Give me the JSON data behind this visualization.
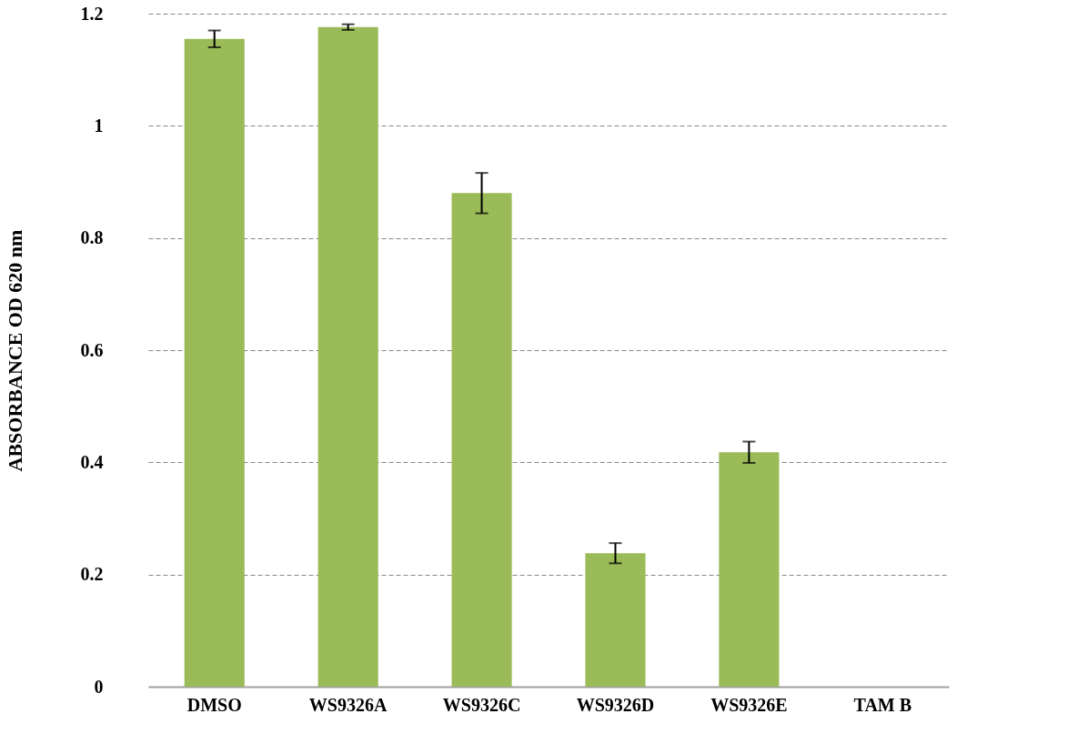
{
  "chart_data": {
    "type": "bar",
    "ylabel": "ABSORBANCE OD 620 nm",
    "categories": [
      "DMSO",
      "WS9326A",
      "WS9326C",
      "WS9326D",
      "WS9326E",
      "TAM B"
    ],
    "values": [
      1.155,
      1.176,
      0.88,
      0.238,
      0.418,
      0
    ],
    "errors": [
      0.015,
      0.005,
      0.036,
      0.018,
      0.019,
      null
    ],
    "color": "#9bbb59",
    "ylim": [
      0,
      1.2
    ],
    "yticks": [
      0,
      0.2,
      0.4,
      0.6,
      0.8,
      1,
      1.2
    ],
    "grid": "y"
  }
}
